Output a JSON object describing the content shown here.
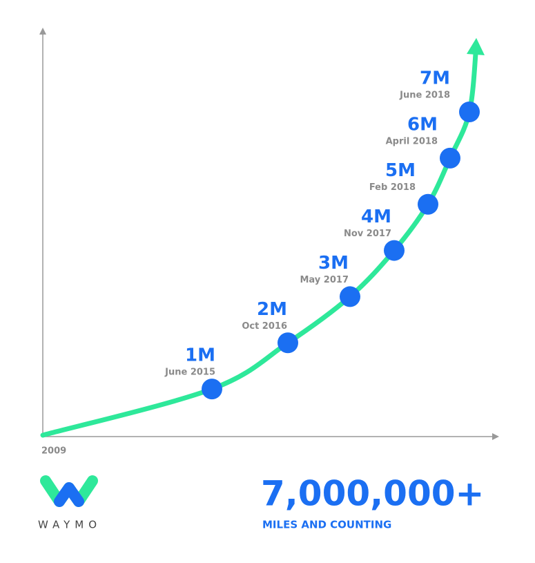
{
  "chart_data": {
    "type": "line",
    "x_start_label": "2009",
    "categories": [
      "June 2015",
      "Oct 2016",
      "May 2017",
      "Nov 2017",
      "Feb 2018",
      "April 2018",
      "June 2018"
    ],
    "values": [
      1000000,
      2000000,
      3000000,
      4000000,
      5000000,
      6000000,
      7000000
    ],
    "value_labels": [
      "1M",
      "2M",
      "3M",
      "4M",
      "5M",
      "6M",
      "7M"
    ],
    "line_color": "#2ee89a",
    "marker_color": "#1b6ff2"
  },
  "headline": "7,000,000+",
  "subheadline": "MILES AND COUNTING",
  "logo_text": "WAYMO"
}
